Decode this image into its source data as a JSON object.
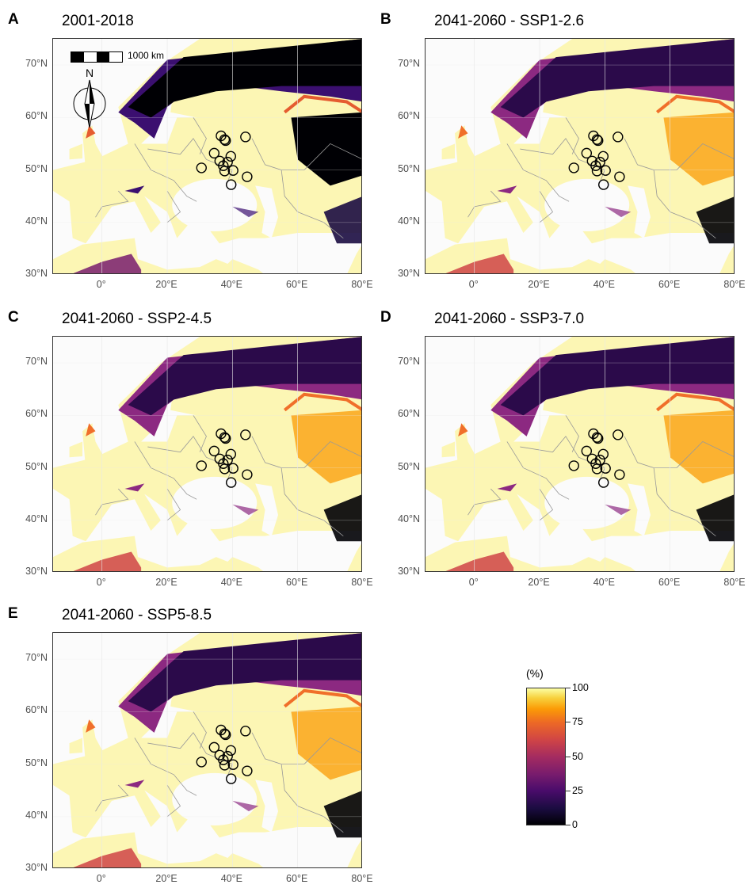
{
  "panels": [
    {
      "letter": "A",
      "title": "2001-2018",
      "variant": "baseline"
    },
    {
      "letter": "B",
      "title": "2041-2060 - SSP1-2.6",
      "variant": "future"
    },
    {
      "letter": "C",
      "title": "2041-2060 - SSP2-4.5",
      "variant": "future"
    },
    {
      "letter": "D",
      "title": "2041-2060 - SSP3-7.0",
      "variant": "future"
    },
    {
      "letter": "E",
      "title": "2041-2060 - SSP5-8.5",
      "variant": "future"
    }
  ],
  "axes": {
    "lat_labels": [
      "70°N",
      "60°N",
      "50°N",
      "40°N",
      "30°N"
    ],
    "lon_labels": [
      "0°",
      "20°E",
      "40°E",
      "60°E",
      "80°E"
    ],
    "lon_range": [
      -15,
      80
    ],
    "lat_range": [
      30,
      75
    ]
  },
  "scalebar": {
    "label": "1000 km"
  },
  "north_arrow": {
    "label": "N",
    "icon": "north-arrow-icon"
  },
  "legend": {
    "title": "(%)",
    "ticks": [
      "100",
      "75",
      "50",
      "25",
      "0"
    ],
    "colormap": "inferno",
    "range": [
      0,
      100
    ]
  },
  "sites": [
    {
      "lon": 36.5,
      "lat": 56.5
    },
    {
      "lon": 37.6,
      "lat": 55.8
    },
    {
      "lon": 37.9,
      "lat": 55.6
    },
    {
      "lon": 44.0,
      "lat": 56.3
    },
    {
      "lon": 34.4,
      "lat": 53.2
    },
    {
      "lon": 39.5,
      "lat": 52.6
    },
    {
      "lon": 36.1,
      "lat": 51.7
    },
    {
      "lon": 38.5,
      "lat": 51.5
    },
    {
      "lon": 37.2,
      "lat": 50.8
    },
    {
      "lon": 30.5,
      "lat": 50.4
    },
    {
      "lon": 40.2,
      "lat": 49.9
    },
    {
      "lon": 37.6,
      "lat": 49.8
    },
    {
      "lon": 39.6,
      "lat": 47.2
    },
    {
      "lon": 44.5,
      "lat": 48.7
    }
  ]
}
